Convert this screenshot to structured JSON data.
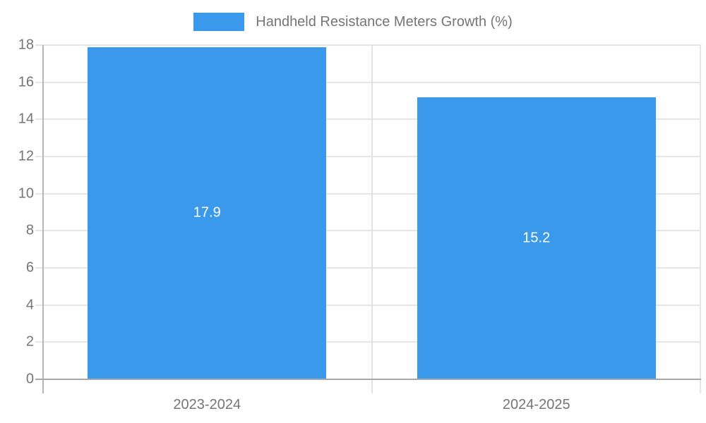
{
  "chart_data": {
    "type": "bar",
    "title": "Handheld Resistance Meters Growth (%)",
    "categories": [
      "2023-2024",
      "2024-2025"
    ],
    "values": [
      17.9,
      15.2
    ],
    "value_labels": [
      "17.9",
      "15.2"
    ],
    "yticks": [
      0,
      2,
      4,
      6,
      8,
      10,
      12,
      14,
      16,
      18
    ],
    "ylim": [
      0,
      18
    ],
    "xlabel": "",
    "ylabel": "",
    "grid": true,
    "legend_position": "top-center",
    "colors": {
      "bar": "#3B99EC",
      "value_label": "#FFFFFF",
      "axis_text": "#757575",
      "gridline": "#E6E6E6",
      "divider": "#E2E2E2",
      "baseline": "#A9A9A9",
      "y_axis_line": "#B5B5B5",
      "background": "#FFFFFF"
    }
  }
}
